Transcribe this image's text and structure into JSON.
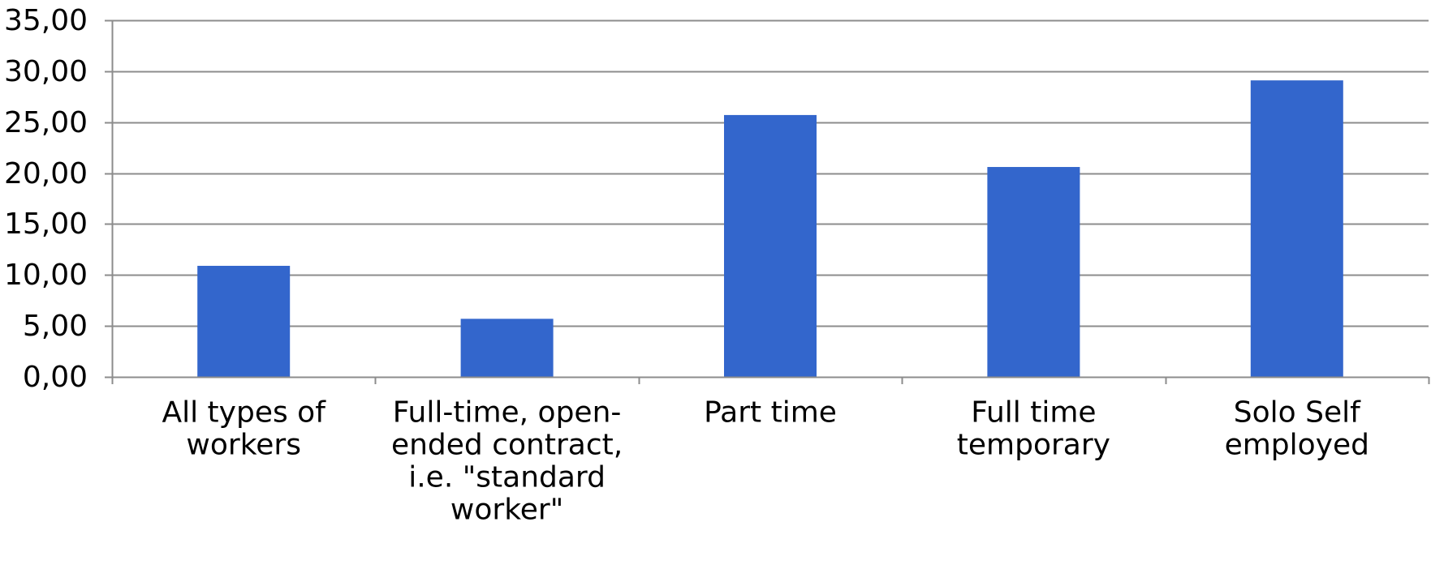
{
  "chart_data": {
    "type": "bar",
    "categories": [
      [
        "All types of",
        "workers"
      ],
      [
        "Full-time, open-",
        "ended contract,",
        "i.e. \"standard",
        "worker\""
      ],
      [
        "Part time"
      ],
      [
        "Full time",
        "temporary"
      ],
      [
        "Solo Self",
        "employed"
      ]
    ],
    "values": [
      10.9,
      5.7,
      25.7,
      20.6,
      29.1
    ],
    "ylim": [
      0,
      35
    ],
    "yticks": [
      0,
      5,
      10,
      15,
      20,
      25,
      30,
      35
    ],
    "ytick_labels": [
      "0,00",
      "5,00",
      "10,00",
      "15,00",
      "20,00",
      "25,00",
      "30,00",
      "35,00"
    ],
    "grid": true,
    "bar_color": "#3366CC",
    "grid_color": "#8C8C8C",
    "axis_color": "#8C8C8C",
    "title": "",
    "xlabel": "",
    "ylabel": ""
  }
}
